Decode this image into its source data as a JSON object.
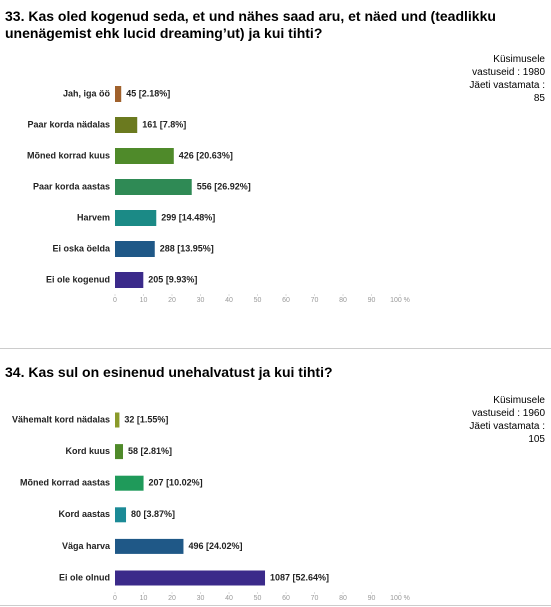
{
  "chart_data": [
    {
      "type": "barh",
      "title": "33. Kas oled kogenud seda, et und nähes saad aru, et näed und (teadlikku unenägemist ehk lucid dreaming’ut) ja kui tihti?",
      "notes": [
        "Küsimusele vastuseid : 1980",
        "Jäeti vastamata : 85"
      ],
      "categories": [
        "Jah, iga öö",
        "Paar korda nädalas",
        "Mõned korrad kuus",
        "Paar korda aastas",
        "Harvem",
        "Ei oska öelda",
        "Ei ole kogenud"
      ],
      "values": [
        2.18,
        7.8,
        20.63,
        26.92,
        14.48,
        13.95,
        9.93
      ],
      "value_labels": [
        "45 [2.18%]",
        "161 [7.8%]",
        "426 [20.63%]",
        "556 [26.92%]",
        "299 [14.48%]",
        "288 [13.95%]",
        "205 [9.93%]"
      ],
      "colors": [
        "#a0612c",
        "#6b7a1f",
        "#4f8a2a",
        "#2f8a55",
        "#1b8a86",
        "#1f5887",
        "#3b2a8a"
      ],
      "xlim": [
        0,
        100
      ],
      "xticks": [
        0,
        10,
        20,
        30,
        40,
        50,
        60,
        70,
        80,
        90,
        {
          "value": 100,
          "label": "100 %"
        }
      ]
    },
    {
      "type": "barh",
      "title": "34. Kas sul on esinenud unehalvatust ja kui tihti?",
      "notes": [
        "Küsimusele vastuseid : 1960",
        "Jäeti vastamata : 105"
      ],
      "categories": [
        "Vähemalt kord nädalas",
        "Kord kuus",
        "Mõned korrad aastas",
        "Kord aastas",
        "Väga harva",
        "Ei ole olnud"
      ],
      "values": [
        1.55,
        2.81,
        10.02,
        3.87,
        24.02,
        52.64
      ],
      "value_labels": [
        "32 [1.55%]",
        "58 [2.81%]",
        "207 [10.02%]",
        "80 [3.87%]",
        "496 [24.02%]",
        "1087 [52.64%]"
      ],
      "colors": [
        "#8a9a2a",
        "#4f8a2a",
        "#1f9a5a",
        "#1b8a96",
        "#1f5887",
        "#3b2a8a"
      ],
      "xlim": [
        0,
        100
      ],
      "xticks": [
        0,
        10,
        20,
        30,
        40,
        50,
        60,
        70,
        80,
        90,
        {
          "value": 100,
          "label": "100 %"
        }
      ]
    }
  ]
}
